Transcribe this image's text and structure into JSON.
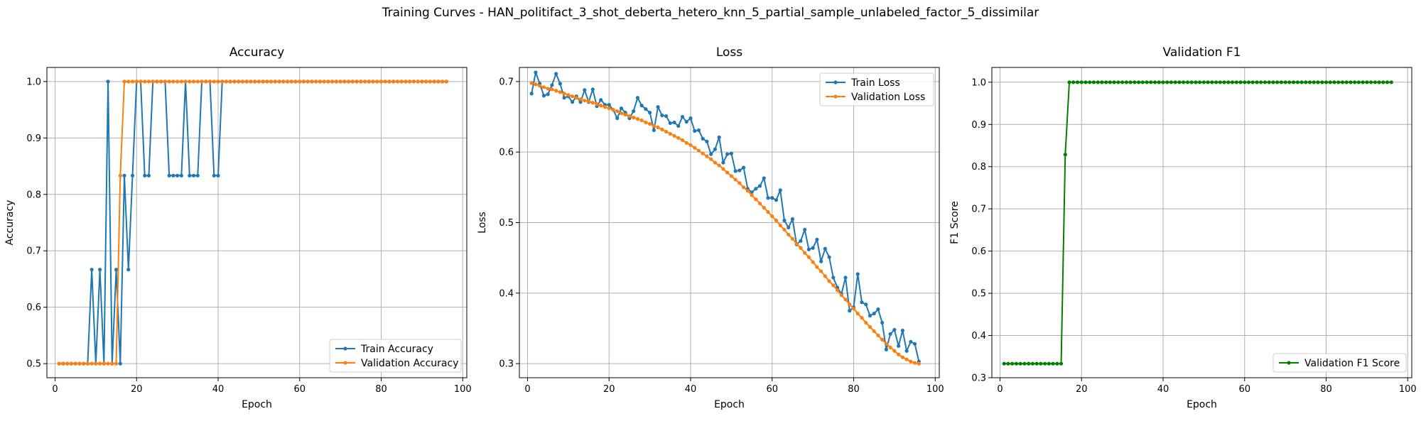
{
  "figure": {
    "suptitle": "Training Curves - HAN_politifact_3_shot_deberta_hetero_knn_5_partial_sample_unlabeled_factor_5_dissimilar"
  },
  "colors": {
    "blue": "#1f77b4",
    "orange": "#ff7f0e",
    "green": "#008000",
    "grid": "#b0b0b0"
  },
  "chart_data": [
    {
      "type": "line",
      "title": "Accuracy",
      "xlabel": "Epoch",
      "ylabel": "Accuracy",
      "xlim": [
        -2,
        101
      ],
      "ylim": [
        0.475,
        1.025
      ],
      "xticks": [
        0,
        20,
        40,
        60,
        80,
        100
      ],
      "yticks": [
        0.5,
        0.6,
        0.7,
        0.8,
        0.9,
        1.0
      ],
      "ytick_labels": [
        "0.5",
        "0.6",
        "0.7",
        "0.8",
        "0.9",
        "1.0"
      ],
      "grid": true,
      "legend": "lower-right",
      "series": [
        {
          "name": "Train Accuracy",
          "color": "blue",
          "x": [
            1,
            2,
            3,
            4,
            5,
            6,
            7,
            8,
            9,
            10,
            11,
            12,
            13,
            14,
            15,
            16,
            17,
            18,
            19,
            20,
            21,
            22,
            23,
            24,
            25,
            26,
            27,
            28,
            29,
            30,
            31,
            32,
            33,
            34,
            35,
            36,
            37,
            38,
            39,
            40,
            41,
            42,
            43,
            44,
            45,
            46,
            47,
            48,
            49,
            50,
            51,
            52,
            53,
            54,
            55,
            56,
            57,
            58,
            59,
            60,
            61,
            62,
            63,
            64,
            65,
            66,
            67,
            68,
            69,
            70,
            71,
            72,
            73,
            74,
            75,
            76,
            77,
            78,
            79,
            80,
            81,
            82,
            83,
            84,
            85,
            86,
            87,
            88,
            89,
            90,
            91,
            92,
            93,
            94,
            95,
            96
          ],
          "y": [
            0.5,
            0.5,
            0.5,
            0.5,
            0.5,
            0.5,
            0.5,
            0.5,
            0.6667,
            0.5,
            0.6667,
            0.5,
            1.0,
            0.5,
            0.6667,
            0.5,
            0.8333,
            0.6667,
            0.8333,
            1.0,
            1.0,
            0.8333,
            0.8333,
            1.0,
            1.0,
            1.0,
            1.0,
            0.8333,
            0.8333,
            0.8333,
            0.8333,
            1.0,
            0.8333,
            0.8333,
            0.8333,
            1.0,
            1.0,
            1.0,
            0.8333,
            0.8333,
            1.0,
            1.0,
            1.0,
            1.0,
            1.0,
            1.0,
            1.0,
            1.0,
            1.0,
            1.0,
            1.0,
            1.0,
            1.0,
            1.0,
            1.0,
            1.0,
            1.0,
            1.0,
            1.0,
            1.0,
            1.0,
            1.0,
            1.0,
            1.0,
            1.0,
            1.0,
            1.0,
            1.0,
            1.0,
            1.0,
            1.0,
            1.0,
            1.0,
            1.0,
            1.0,
            1.0,
            1.0,
            1.0,
            1.0,
            1.0,
            1.0,
            1.0,
            1.0,
            1.0,
            1.0,
            1.0,
            1.0,
            1.0,
            1.0,
            1.0,
            1.0,
            1.0,
            1.0,
            1.0,
            1.0,
            1.0
          ]
        },
        {
          "name": "Validation Accuracy",
          "color": "orange",
          "x": [
            1,
            2,
            3,
            4,
            5,
            6,
            7,
            8,
            9,
            10,
            11,
            12,
            13,
            14,
            15,
            16,
            17,
            18,
            19,
            20,
            21,
            22,
            23,
            24,
            25,
            26,
            27,
            28,
            29,
            30,
            31,
            32,
            33,
            34,
            35,
            36,
            37,
            38,
            39,
            40,
            41,
            42,
            43,
            44,
            45,
            46,
            47,
            48,
            49,
            50,
            51,
            52,
            53,
            54,
            55,
            56,
            57,
            58,
            59,
            60,
            61,
            62,
            63,
            64,
            65,
            66,
            67,
            68,
            69,
            70,
            71,
            72,
            73,
            74,
            75,
            76,
            77,
            78,
            79,
            80,
            81,
            82,
            83,
            84,
            85,
            86,
            87,
            88,
            89,
            90,
            91,
            92,
            93,
            94,
            95,
            96
          ],
          "y": [
            0.5,
            0.5,
            0.5,
            0.5,
            0.5,
            0.5,
            0.5,
            0.5,
            0.5,
            0.5,
            0.5,
            0.5,
            0.5,
            0.5,
            0.5,
            0.8333,
            1.0,
            1.0,
            1.0,
            1.0,
            1.0,
            1.0,
            1.0,
            1.0,
            1.0,
            1.0,
            1.0,
            1.0,
            1.0,
            1.0,
            1.0,
            1.0,
            1.0,
            1.0,
            1.0,
            1.0,
            1.0,
            1.0,
            1.0,
            1.0,
            1.0,
            1.0,
            1.0,
            1.0,
            1.0,
            1.0,
            1.0,
            1.0,
            1.0,
            1.0,
            1.0,
            1.0,
            1.0,
            1.0,
            1.0,
            1.0,
            1.0,
            1.0,
            1.0,
            1.0,
            1.0,
            1.0,
            1.0,
            1.0,
            1.0,
            1.0,
            1.0,
            1.0,
            1.0,
            1.0,
            1.0,
            1.0,
            1.0,
            1.0,
            1.0,
            1.0,
            1.0,
            1.0,
            1.0,
            1.0,
            1.0,
            1.0,
            1.0,
            1.0,
            1.0,
            1.0,
            1.0,
            1.0,
            1.0,
            1.0,
            1.0,
            1.0,
            1.0,
            1.0,
            1.0,
            1.0
          ]
        }
      ]
    },
    {
      "type": "line",
      "title": "Loss",
      "xlabel": "Epoch",
      "ylabel": "Loss",
      "xlim": [
        -2,
        101
      ],
      "ylim": [
        0.28,
        0.72
      ],
      "xticks": [
        0,
        20,
        40,
        60,
        80,
        100
      ],
      "yticks": [
        0.3,
        0.4,
        0.5,
        0.6,
        0.7
      ],
      "ytick_labels": [
        "0.3",
        "0.4",
        "0.5",
        "0.6",
        "0.7"
      ],
      "grid": true,
      "legend": "upper-right",
      "series": [
        {
          "name": "Train Loss",
          "color": "blue",
          "x": [
            1,
            2,
            3,
            4,
            5,
            6,
            7,
            8,
            9,
            10,
            11,
            12,
            13,
            14,
            15,
            16,
            17,
            18,
            19,
            20,
            21,
            22,
            23,
            24,
            25,
            26,
            27,
            28,
            29,
            30,
            31,
            32,
            33,
            34,
            35,
            36,
            37,
            38,
            39,
            40,
            41,
            42,
            43,
            44,
            45,
            46,
            47,
            48,
            49,
            50,
            51,
            52,
            53,
            54,
            55,
            56,
            57,
            58,
            59,
            60,
            61,
            62,
            63,
            64,
            65,
            66,
            67,
            68,
            69,
            70,
            71,
            72,
            73,
            74,
            75,
            76,
            77,
            78,
            79,
            80,
            81,
            82,
            83,
            84,
            85,
            86,
            87,
            88,
            89,
            90,
            91,
            92,
            93,
            94,
            95,
            96
          ],
          "y": [
            0.683,
            0.713,
            0.697,
            0.68,
            0.682,
            0.695,
            0.711,
            0.697,
            0.677,
            0.679,
            0.671,
            0.679,
            0.671,
            0.688,
            0.671,
            0.689,
            0.665,
            0.674,
            0.667,
            0.667,
            0.66,
            0.648,
            0.662,
            0.656,
            0.648,
            0.658,
            0.677,
            0.666,
            0.661,
            0.656,
            0.631,
            0.664,
            0.652,
            0.651,
            0.641,
            0.642,
            0.637,
            0.65,
            0.643,
            0.648,
            0.63,
            0.631,
            0.619,
            0.615,
            0.597,
            0.604,
            0.621,
            0.585,
            0.597,
            0.598,
            0.573,
            0.574,
            0.578,
            0.548,
            0.543,
            0.548,
            0.552,
            0.563,
            0.535,
            0.535,
            0.532,
            0.546,
            0.503,
            0.493,
            0.505,
            0.469,
            0.474,
            0.49,
            0.462,
            0.464,
            0.476,
            0.445,
            0.463,
            0.451,
            0.422,
            0.408,
            0.399,
            0.422,
            0.375,
            0.38,
            0.427,
            0.387,
            0.384,
            0.368,
            0.371,
            0.377,
            0.358,
            0.32,
            0.342,
            0.348,
            0.325,
            0.347,
            0.318,
            0.331,
            0.328,
            0.303
          ]
        },
        {
          "name": "Validation Loss",
          "color": "orange",
          "x": [
            1,
            2,
            3,
            4,
            5,
            6,
            7,
            8,
            9,
            10,
            11,
            12,
            13,
            14,
            15,
            16,
            17,
            18,
            19,
            20,
            21,
            22,
            23,
            24,
            25,
            26,
            27,
            28,
            29,
            30,
            31,
            32,
            33,
            34,
            35,
            36,
            37,
            38,
            39,
            40,
            41,
            42,
            43,
            44,
            45,
            46,
            47,
            48,
            49,
            50,
            51,
            52,
            53,
            54,
            55,
            56,
            57,
            58,
            59,
            60,
            61,
            62,
            63,
            64,
            65,
            66,
            67,
            68,
            69,
            70,
            71,
            72,
            73,
            74,
            75,
            76,
            77,
            78,
            79,
            80,
            81,
            82,
            83,
            84,
            85,
            86,
            87,
            88,
            89,
            90,
            91,
            92,
            93,
            94,
            95,
            96
          ],
          "y": [
            0.698,
            0.696,
            0.694,
            0.692,
            0.69,
            0.689,
            0.687,
            0.685,
            0.683,
            0.681,
            0.679,
            0.677,
            0.675,
            0.673,
            0.672,
            0.67,
            0.668,
            0.666,
            0.664,
            0.662,
            0.66,
            0.658,
            0.655,
            0.653,
            0.651,
            0.649,
            0.647,
            0.645,
            0.642,
            0.64,
            0.637,
            0.635,
            0.632,
            0.629,
            0.626,
            0.623,
            0.62,
            0.617,
            0.613,
            0.61,
            0.606,
            0.602,
            0.598,
            0.594,
            0.59,
            0.585,
            0.581,
            0.576,
            0.571,
            0.566,
            0.561,
            0.556,
            0.55,
            0.545,
            0.539,
            0.533,
            0.527,
            0.521,
            0.515,
            0.509,
            0.503,
            0.496,
            0.49,
            0.483,
            0.477,
            0.47,
            0.464,
            0.457,
            0.451,
            0.444,
            0.437,
            0.431,
            0.424,
            0.417,
            0.411,
            0.404,
            0.397,
            0.391,
            0.384,
            0.378,
            0.371,
            0.365,
            0.358,
            0.352,
            0.346,
            0.34,
            0.334,
            0.328,
            0.323,
            0.318,
            0.313,
            0.309,
            0.306,
            0.303,
            0.301,
            0.3
          ]
        }
      ]
    },
    {
      "type": "line",
      "title": "Validation F1",
      "xlabel": "Epoch",
      "ylabel": "F1 Score",
      "xlim": [
        -2,
        101
      ],
      "ylim": [
        0.3,
        1.035
      ],
      "xticks": [
        0,
        20,
        40,
        60,
        80,
        100
      ],
      "yticks": [
        0.3,
        0.4,
        0.5,
        0.6,
        0.7,
        0.8,
        0.9,
        1.0
      ],
      "ytick_labels": [
        "0.3",
        "0.4",
        "0.5",
        "0.6",
        "0.7",
        "0.8",
        "0.9",
        "1.0"
      ],
      "grid": true,
      "legend": "lower-right",
      "series": [
        {
          "name": "Validation F1 Score",
          "color": "green",
          "x": [
            1,
            2,
            3,
            4,
            5,
            6,
            7,
            8,
            9,
            10,
            11,
            12,
            13,
            14,
            15,
            16,
            17,
            18,
            19,
            20,
            21,
            22,
            23,
            24,
            25,
            26,
            27,
            28,
            29,
            30,
            31,
            32,
            33,
            34,
            35,
            36,
            37,
            38,
            39,
            40,
            41,
            42,
            43,
            44,
            45,
            46,
            47,
            48,
            49,
            50,
            51,
            52,
            53,
            54,
            55,
            56,
            57,
            58,
            59,
            60,
            61,
            62,
            63,
            64,
            65,
            66,
            67,
            68,
            69,
            70,
            71,
            72,
            73,
            74,
            75,
            76,
            77,
            78,
            79,
            80,
            81,
            82,
            83,
            84,
            85,
            86,
            87,
            88,
            89,
            90,
            91,
            92,
            93,
            94,
            95,
            96
          ],
          "y": [
            0.3333,
            0.3333,
            0.3333,
            0.3333,
            0.3333,
            0.3333,
            0.3333,
            0.3333,
            0.3333,
            0.3333,
            0.3333,
            0.3333,
            0.3333,
            0.3333,
            0.3333,
            0.8286,
            1.0,
            1.0,
            1.0,
            1.0,
            1.0,
            1.0,
            1.0,
            1.0,
            1.0,
            1.0,
            1.0,
            1.0,
            1.0,
            1.0,
            1.0,
            1.0,
            1.0,
            1.0,
            1.0,
            1.0,
            1.0,
            1.0,
            1.0,
            1.0,
            1.0,
            1.0,
            1.0,
            1.0,
            1.0,
            1.0,
            1.0,
            1.0,
            1.0,
            1.0,
            1.0,
            1.0,
            1.0,
            1.0,
            1.0,
            1.0,
            1.0,
            1.0,
            1.0,
            1.0,
            1.0,
            1.0,
            1.0,
            1.0,
            1.0,
            1.0,
            1.0,
            1.0,
            1.0,
            1.0,
            1.0,
            1.0,
            1.0,
            1.0,
            1.0,
            1.0,
            1.0,
            1.0,
            1.0,
            1.0,
            1.0,
            1.0,
            1.0,
            1.0,
            1.0,
            1.0,
            1.0,
            1.0,
            1.0,
            1.0,
            1.0,
            1.0,
            1.0,
            1.0,
            1.0,
            1.0
          ]
        }
      ]
    }
  ]
}
